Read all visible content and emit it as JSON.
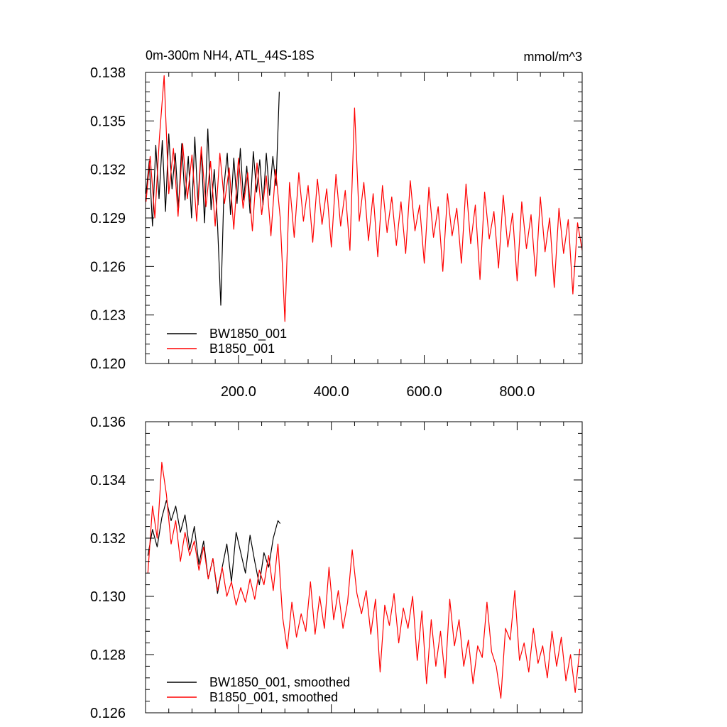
{
  "chart_data": [
    {
      "type": "line",
      "title_left": "0m-300m NH4, ATL_44S-18S",
      "title_right": "mmol/m^3",
      "xlim": [
        0,
        940
      ],
      "ylim": [
        0.12,
        0.138
      ],
      "xticks": [
        200,
        400,
        600,
        800
      ],
      "xtick_labels": [
        "200.0",
        "400.0",
        "600.0",
        "800.0"
      ],
      "yticks": [
        0.12,
        0.123,
        0.126,
        0.129,
        0.132,
        0.135,
        0.138
      ],
      "ytick_labels": [
        "0.120",
        "0.123",
        "0.126",
        "0.129",
        "0.132",
        "0.135",
        "0.138"
      ],
      "grid": false,
      "legend_position": "bottom-left",
      "series": [
        {
          "name": "BW1850_001",
          "color": "#000000",
          "x": [
            1,
            8,
            15,
            22,
            29,
            36,
            43,
            50,
            57,
            64,
            71,
            78,
            85,
            92,
            99,
            106,
            113,
            120,
            127,
            134,
            141,
            148,
            155,
            162,
            169,
            176,
            183,
            190,
            197,
            204,
            211,
            218,
            225,
            232,
            239,
            246,
            253,
            260,
            267,
            274,
            281,
            288
          ],
          "y": [
            0.1305,
            0.1325,
            0.1285,
            0.1335,
            0.1302,
            0.1338,
            0.1294,
            0.1342,
            0.1308,
            0.133,
            0.1296,
            0.1336,
            0.1301,
            0.1328,
            0.129,
            0.134,
            0.1298,
            0.1332,
            0.1287,
            0.1345,
            0.1295,
            0.132,
            0.1286,
            0.1236,
            0.131,
            0.133,
            0.1292,
            0.1327,
            0.1299,
            0.1333,
            0.1301,
            0.1322,
            0.1293,
            0.1331,
            0.1306,
            0.1326,
            0.1298,
            0.133,
            0.1304,
            0.1328,
            0.131,
            0.1368
          ]
        },
        {
          "name": "B1850_001",
          "color": "#ff0000",
          "x": [
            1,
            10,
            20,
            30,
            40,
            50,
            60,
            70,
            80,
            90,
            100,
            110,
            120,
            130,
            140,
            150,
            160,
            170,
            180,
            190,
            200,
            210,
            220,
            230,
            240,
            250,
            260,
            270,
            280,
            290,
            300,
            310,
            320,
            330,
            340,
            350,
            360,
            370,
            380,
            390,
            400,
            410,
            420,
            430,
            440,
            450,
            460,
            470,
            480,
            490,
            500,
            510,
            520,
            530,
            540,
            550,
            560,
            570,
            580,
            590,
            600,
            610,
            620,
            630,
            640,
            650,
            660,
            670,
            680,
            690,
            700,
            710,
            720,
            730,
            740,
            750,
            760,
            770,
            780,
            790,
            800,
            810,
            820,
            830,
            840,
            850,
            860,
            870,
            880,
            890,
            900,
            910,
            920,
            930,
            940
          ],
          "y": [
            0.13,
            0.1328,
            0.129,
            0.134,
            0.1378,
            0.1305,
            0.1333,
            0.1291,
            0.1336,
            0.1302,
            0.1329,
            0.1288,
            0.1334,
            0.1297,
            0.1325,
            0.1285,
            0.133,
            0.1299,
            0.1321,
            0.1283,
            0.1327,
            0.1296,
            0.1318,
            0.1282,
            0.1324,
            0.1292,
            0.1316,
            0.1279,
            0.132,
            0.129,
            0.1226,
            0.1312,
            0.1278,
            0.1318,
            0.1288,
            0.131,
            0.1275,
            0.1314,
            0.1286,
            0.1308,
            0.1272,
            0.1317,
            0.1285,
            0.1307,
            0.127,
            0.1358,
            0.1288,
            0.1312,
            0.1276,
            0.1305,
            0.1266,
            0.131,
            0.1281,
            0.1303,
            0.1273,
            0.13,
            0.1268,
            0.1313,
            0.1282,
            0.1298,
            0.1262,
            0.1309,
            0.1278,
            0.1297,
            0.1257,
            0.1305,
            0.1279,
            0.1296,
            0.1262,
            0.1311,
            0.1274,
            0.1298,
            0.1252,
            0.1306,
            0.1277,
            0.1294,
            0.1259,
            0.1304,
            0.1272,
            0.1293,
            0.1251,
            0.13,
            0.1271,
            0.1292,
            0.1254,
            0.1303,
            0.1269,
            0.129,
            0.1247,
            0.1296,
            0.1268,
            0.1289,
            0.1243,
            0.1287,
            0.127
          ]
        }
      ],
      "legend": [
        "BW1850_001",
        "B1850_001"
      ]
    },
    {
      "type": "line",
      "xlim": [
        0,
        940
      ],
      "ylim": [
        0.126,
        0.136
      ],
      "xticks": [
        200,
        400,
        600,
        800
      ],
      "yticks": [
        0.126,
        0.128,
        0.13,
        0.132,
        0.134,
        0.136
      ],
      "ytick_labels": [
        "0.126",
        "0.128",
        "0.130",
        "0.132",
        "0.134",
        "0.136"
      ],
      "grid": false,
      "legend_position": "bottom-left",
      "series": [
        {
          "name": "BW1850_001, smoothed",
          "color": "#000000",
          "x": [
            5,
            15,
            25,
            35,
            45,
            55,
            65,
            75,
            85,
            95,
            105,
            115,
            125,
            135,
            145,
            155,
            165,
            175,
            185,
            195,
            205,
            215,
            225,
            235,
            245,
            255,
            265,
            275,
            285,
            290
          ],
          "y": [
            0.1314,
            0.1323,
            0.1317,
            0.1327,
            0.1333,
            0.1326,
            0.1331,
            0.1322,
            0.1328,
            0.1316,
            0.1324,
            0.1311,
            0.1319,
            0.1306,
            0.1313,
            0.1301,
            0.131,
            0.1318,
            0.1305,
            0.1322,
            0.1315,
            0.1308,
            0.1321,
            0.1312,
            0.1304,
            0.1315,
            0.131,
            0.132,
            0.1326,
            0.1325
          ]
        },
        {
          "name": "B1850_001, smoothed",
          "color": "#ff0000",
          "x": [
            5,
            15,
            25,
            35,
            45,
            55,
            65,
            75,
            85,
            95,
            105,
            115,
            125,
            135,
            145,
            155,
            165,
            175,
            185,
            195,
            205,
            215,
            225,
            235,
            245,
            255,
            265,
            275,
            285,
            295,
            305,
            315,
            325,
            335,
            345,
            355,
            365,
            375,
            385,
            395,
            405,
            415,
            425,
            435,
            445,
            455,
            465,
            475,
            485,
            495,
            505,
            515,
            525,
            535,
            545,
            555,
            565,
            575,
            585,
            595,
            605,
            615,
            625,
            635,
            645,
            655,
            665,
            675,
            685,
            695,
            705,
            715,
            725,
            735,
            745,
            755,
            765,
            775,
            785,
            795,
            805,
            815,
            825,
            835,
            845,
            855,
            865,
            875,
            885,
            895,
            905,
            915,
            925,
            935
          ],
          "y": [
            0.1308,
            0.1331,
            0.132,
            0.1346,
            0.1335,
            0.1318,
            0.1326,
            0.1312,
            0.1322,
            0.1314,
            0.1319,
            0.1309,
            0.1317,
            0.1306,
            0.1313,
            0.1302,
            0.131,
            0.13,
            0.1305,
            0.1297,
            0.1303,
            0.1298,
            0.1306,
            0.1299,
            0.1309,
            0.1304,
            0.1314,
            0.1302,
            0.1318,
            0.1293,
            0.1282,
            0.1298,
            0.1286,
            0.1294,
            0.1288,
            0.1305,
            0.1287,
            0.13,
            0.1289,
            0.131,
            0.1292,
            0.1302,
            0.1289,
            0.1298,
            0.1316,
            0.1301,
            0.1294,
            0.1302,
            0.1287,
            0.1299,
            0.1274,
            0.1297,
            0.129,
            0.1301,
            0.1284,
            0.1296,
            0.1289,
            0.13,
            0.1278,
            0.1295,
            0.127,
            0.1292,
            0.1276,
            0.1288,
            0.1272,
            0.1299,
            0.1283,
            0.1292,
            0.1276,
            0.1285,
            0.127,
            0.1283,
            0.1279,
            0.1298,
            0.1281,
            0.1276,
            0.1265,
            0.1289,
            0.1285,
            0.1302,
            0.1278,
            0.1284,
            0.1274,
            0.1289,
            0.1277,
            0.1283,
            0.1272,
            0.1288,
            0.1276,
            0.1286,
            0.1271,
            0.128,
            0.1267,
            0.1282
          ]
        }
      ],
      "legend": [
        "BW1850_001, smoothed",
        "B1850_001, smoothed"
      ]
    }
  ]
}
